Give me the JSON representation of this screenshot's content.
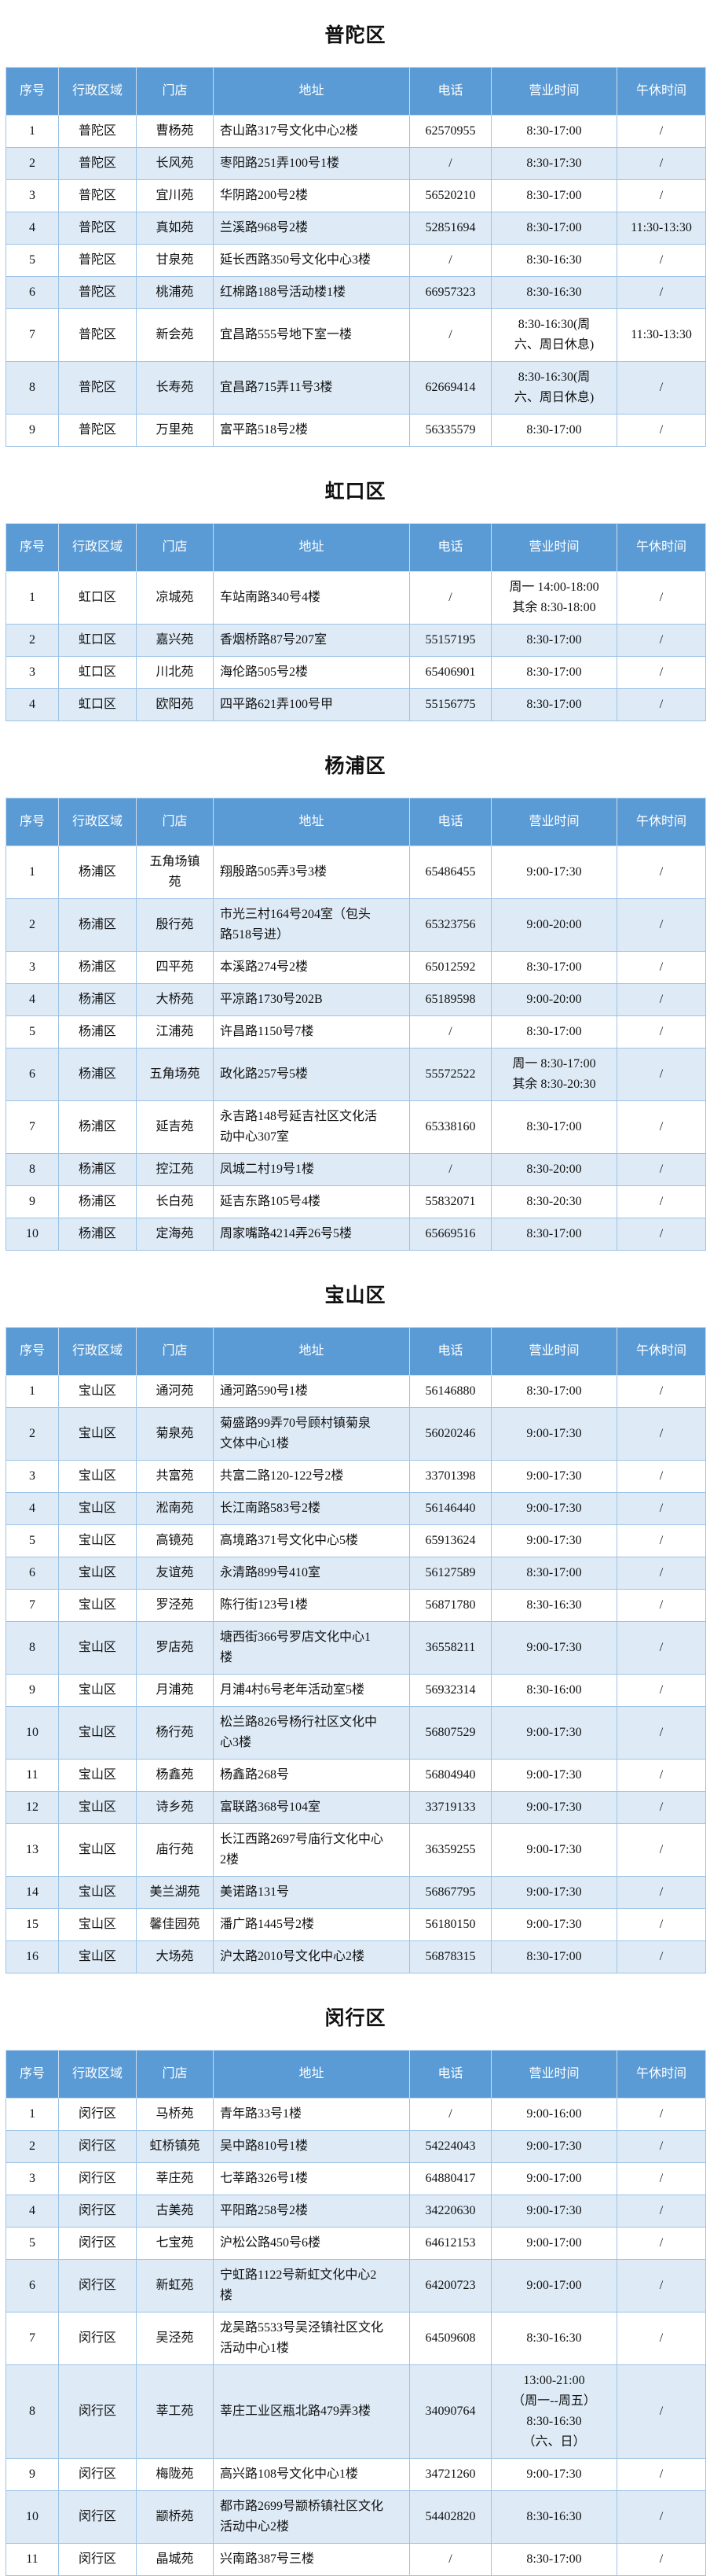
{
  "columns": [
    "序号",
    "行政区域",
    "门店",
    "地址",
    "电话",
    "营业时间",
    "午休时间"
  ],
  "colors": {
    "header_bg": "#5b9bd5",
    "alt_row_bg": "#deebf7",
    "border": "#9dc3e6"
  },
  "sections": [
    {
      "title": "普陀区",
      "rows": [
        [
          "1",
          "普陀区",
          "曹杨苑",
          "杏山路317号文化中心2楼",
          "62570955",
          "8:30-17:00",
          "/"
        ],
        [
          "2",
          "普陀区",
          "长风苑",
          "枣阳路251弄100号1楼",
          "/",
          "8:30-17:30",
          "/"
        ],
        [
          "3",
          "普陀区",
          "宜川苑",
          "华阴路200号2楼",
          "56520210",
          "8:30-17:00",
          "/"
        ],
        [
          "4",
          "普陀区",
          "真如苑",
          "兰溪路968号2楼",
          "52851694",
          "8:30-17:00",
          "11:30-13:30"
        ],
        [
          "5",
          "普陀区",
          "甘泉苑",
          "延长西路350号文化中心3楼",
          "/",
          "8:30-16:30",
          "/"
        ],
        [
          "6",
          "普陀区",
          "桃浦苑",
          "红棉路188号活动楼1楼",
          "66957323",
          "8:30-16:30",
          "/"
        ],
        [
          "7",
          "普陀区",
          "新会苑",
          "宜昌路555号地下室一楼",
          "/",
          "8:30-16:30(周\n六、周日休息)",
          "11:30-13:30"
        ],
        [
          "8",
          "普陀区",
          "长寿苑",
          "宜昌路715弄11号3楼",
          "62669414",
          "8:30-16:30(周\n六、周日休息)",
          "/"
        ],
        [
          "9",
          "普陀区",
          "万里苑",
          "富平路518号2楼",
          "56335579",
          "8:30-17:00",
          "/"
        ]
      ]
    },
    {
      "title": "虹口区",
      "rows": [
        [
          "1",
          "虹口区",
          "凉城苑",
          "车站南路340号4楼",
          "/",
          "周一 14:00-18:00\n其余 8:30-18:00",
          "/"
        ],
        [
          "2",
          "虹口区",
          "嘉兴苑",
          "香烟桥路87号207室",
          "55157195",
          "8:30-17:00",
          "/"
        ],
        [
          "3",
          "虹口区",
          "川北苑",
          "海伦路505号2楼",
          "65406901",
          "8:30-17:00",
          "/"
        ],
        [
          "4",
          "虹口区",
          "欧阳苑",
          "四平路621弄100号甲",
          "55156775",
          "8:30-17:00",
          "/"
        ]
      ]
    },
    {
      "title": "杨浦区",
      "rows": [
        [
          "1",
          "杨浦区",
          "五角场镇\n苑",
          "翔殷路505弄3号3楼",
          "65486455",
          "9:00-17:30",
          "/"
        ],
        [
          "2",
          "杨浦区",
          "殷行苑",
          "市光三村164号204室（包头\n路518号进）",
          "65323756",
          "9:00-20:00",
          "/"
        ],
        [
          "3",
          "杨浦区",
          "四平苑",
          "本溪路274号2楼",
          "65012592",
          "8:30-17:00",
          "/"
        ],
        [
          "4",
          "杨浦区",
          "大桥苑",
          "平凉路1730号202B",
          "65189598",
          "9:00-20:00",
          "/"
        ],
        [
          "5",
          "杨浦区",
          "江浦苑",
          "许昌路1150号7楼",
          "/",
          "8:30-17:00",
          "/"
        ],
        [
          "6",
          "杨浦区",
          "五角场苑",
          "政化路257号5楼",
          "55572522",
          "周一 8:30-17:00\n其余 8:30-20:30",
          "/"
        ],
        [
          "7",
          "杨浦区",
          "延吉苑",
          "永吉路148号延吉社区文化活\n动中心307室",
          "65338160",
          "8:30-17:00",
          "/"
        ],
        [
          "8",
          "杨浦区",
          "控江苑",
          "凤城二村19号1楼",
          "/",
          "8:30-20:00",
          "/"
        ],
        [
          "9",
          "杨浦区",
          "长白苑",
          "延吉东路105号4楼",
          "55832071",
          "8:30-20:30",
          "/"
        ],
        [
          "10",
          "杨浦区",
          "定海苑",
          "周家嘴路4214弄26号5楼",
          "65669516",
          "8:30-17:00",
          "/"
        ]
      ]
    },
    {
      "title": "宝山区",
      "rows": [
        [
          "1",
          "宝山区",
          "通河苑",
          "通河路590号1楼",
          "56146880",
          "8:30-17:00",
          "/"
        ],
        [
          "2",
          "宝山区",
          "菊泉苑",
          "菊盛路99弄70号顾村镇菊泉\n文体中心1楼",
          "56020246",
          "9:00-17:30",
          "/"
        ],
        [
          "3",
          "宝山区",
          "共富苑",
          "共富二路120-122号2楼",
          "33701398",
          "9:00-17:30",
          "/"
        ],
        [
          "4",
          "宝山区",
          "淞南苑",
          "长江南路583号2楼",
          "56146440",
          "9:00-17:30",
          "/"
        ],
        [
          "5",
          "宝山区",
          "高镜苑",
          "高境路371号文化中心5楼",
          "65913624",
          "9:00-17:30",
          "/"
        ],
        [
          "6",
          "宝山区",
          "友谊苑",
          "永清路899号410室",
          "56127589",
          "8:30-17:00",
          "/"
        ],
        [
          "7",
          "宝山区",
          "罗泾苑",
          "陈行街123号1楼",
          "56871780",
          "8:30-16:30",
          "/"
        ],
        [
          "8",
          "宝山区",
          "罗店苑",
          "塘西街366号罗店文化中心1\n楼",
          "36558211",
          "9:00-17:30",
          "/"
        ],
        [
          "9",
          "宝山区",
          "月浦苑",
          "月浦4村6号老年活动室5楼",
          "56932314",
          "8:30-16:00",
          "/"
        ],
        [
          "10",
          "宝山区",
          "杨行苑",
          "松兰路826号杨行社区文化中\n心3楼",
          "56807529",
          "9:00-17:30",
          "/"
        ],
        [
          "11",
          "宝山区",
          "杨鑫苑",
          "杨鑫路268号",
          "56804940",
          "9:00-17:30",
          "/"
        ],
        [
          "12",
          "宝山区",
          "诗乡苑",
          "富联路368号104室",
          "33719133",
          "9:00-17:30",
          "/"
        ],
        [
          "13",
          "宝山区",
          "庙行苑",
          "长江西路2697号庙行文化中心\n2楼",
          "36359255",
          "9:00-17:30",
          "/"
        ],
        [
          "14",
          "宝山区",
          "美兰湖苑",
          "美诺路131号",
          "56867795",
          "9:00-17:30",
          "/"
        ],
        [
          "15",
          "宝山区",
          "馨佳园苑",
          "潘广路1445号2楼",
          "56180150",
          "9:00-17:30",
          "/"
        ],
        [
          "16",
          "宝山区",
          "大场苑",
          "沪太路2010号文化中心2楼",
          "56878315",
          "8:30-17:00",
          "/"
        ]
      ]
    },
    {
      "title": "闵行区",
      "rows": [
        [
          "1",
          "闵行区",
          "马桥苑",
          "青年路33号1楼",
          "/",
          "9:00-16:00",
          "/"
        ],
        [
          "2",
          "闵行区",
          "虹桥镇苑",
          "吴中路810号1楼",
          "54224043",
          "9:00-17:30",
          "/"
        ],
        [
          "3",
          "闵行区",
          "莘庄苑",
          "七莘路326号1楼",
          "64880417",
          "9:00-17:00",
          "/"
        ],
        [
          "4",
          "闵行区",
          "古美苑",
          "平阳路258号2楼",
          "34220630",
          "9:00-17:30",
          "/"
        ],
        [
          "5",
          "闵行区",
          "七宝苑",
          "沪松公路450号6楼",
          "64612153",
          "9:00-17:00",
          "/"
        ],
        [
          "6",
          "闵行区",
          "新虹苑",
          "宁虹路1122号新虹文化中心2\n楼",
          "64200723",
          "9:00-17:00",
          "/"
        ],
        [
          "7",
          "闵行区",
          "吴泾苑",
          "龙吴路5533号吴泾镇社区文化\n活动中心1楼",
          "64509608",
          "8:30-16:30",
          "/"
        ],
        [
          "8",
          "闵行区",
          "莘工苑",
          "莘庄工业区瓶北路479弄3楼",
          "34090764",
          "13:00-21:00\n（周一--周五）\n8:30-16:30\n（六、日）",
          "/"
        ],
        [
          "9",
          "闵行区",
          "梅陇苑",
          "高兴路108号文化中心1楼",
          "34721260",
          "9:00-17:30",
          "/"
        ],
        [
          "10",
          "闵行区",
          "颛桥苑",
          "都市路2699号颛桥镇社区文化\n活动中心2楼",
          "54402820",
          "8:30-16:30",
          "/"
        ],
        [
          "11",
          "闵行区",
          "晶城苑",
          "兴南路387号三楼",
          "/",
          "8:30-17:00",
          "/"
        ]
      ]
    }
  ]
}
